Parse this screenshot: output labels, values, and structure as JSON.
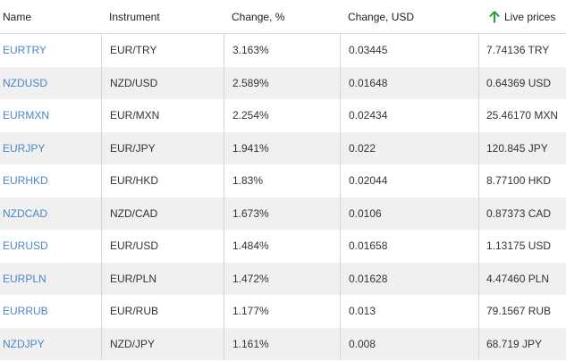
{
  "table": {
    "header": [
      "Name",
      "Instrument",
      "Change, %",
      "Change, USD",
      "Live prices"
    ],
    "rows": [
      [
        "EURTRY",
        "EUR/TRY",
        "3.163%",
        "0.03445",
        "7.74136 TRY"
      ],
      [
        "NZDUSD",
        "NZD/USD",
        "2.589%",
        "0.01648",
        "0.64369 USD"
      ],
      [
        "EURMXN",
        "EUR/MXN",
        "2.254%",
        "0.02434",
        "25.46170 MXN"
      ],
      [
        "EURJPY",
        "EUR/JPY",
        "1.941%",
        "0.022",
        "120.845 JPY"
      ],
      [
        "EURHKD",
        "EUR/HKD",
        "1.83%",
        "0.02044",
        "8.77100 HKD"
      ],
      [
        "NZDCAD",
        "NZD/CAD",
        "1.673%",
        "0.0106",
        "0.87373 CAD"
      ],
      [
        "EURUSD",
        "EUR/USD",
        "1.484%",
        "0.01658",
        "1.13175 USD"
      ],
      [
        "EURPLN",
        "EUR/PLN",
        "1.472%",
        "0.01628",
        "4.47460 PLN"
      ],
      [
        "EURRUB",
        "EUR/RUB",
        "1.177%",
        "0.013",
        "79.1567 RUB"
      ],
      [
        "NZDJPY",
        "NZD/JPY",
        "1.161%",
        "0.008",
        "68.719 JPY"
      ]
    ]
  }
}
